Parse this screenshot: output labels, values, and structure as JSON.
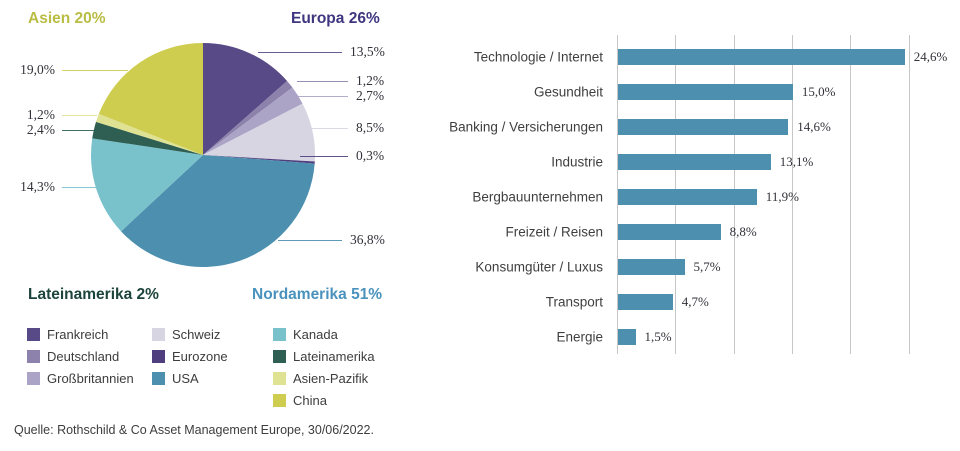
{
  "background": "#ffffff",
  "source_note": "Quelle: Rothschild & Co Asset Management Europe, 30/06/2022.",
  "region_titles": [
    {
      "id": "asien",
      "label": "Asien 20%",
      "color": "#b9bd44"
    },
    {
      "id": "europa",
      "label": "Europa 26%",
      "color": "#3f3680"
    },
    {
      "id": "lateinamerika",
      "label": "Lateinamerika 2%",
      "color": "#1d443c"
    },
    {
      "id": "nordamerika",
      "label": "Nordamerika 51%",
      "color": "#4a92bd"
    }
  ],
  "legend": {
    "columns": [
      [
        {
          "label": "Frankreich",
          "color": "#574a86"
        },
        {
          "label": "Deutschland",
          "color": "#8c82ab"
        },
        {
          "label": "Großbritannien",
          "color": "#aba4c6"
        }
      ],
      [
        {
          "label": "Schweiz",
          "color": "#d8d5e3"
        },
        {
          "label": "Eurozone",
          "color": "#503f7e"
        },
        {
          "label": "USA",
          "color": "#4d8fae"
        }
      ],
      [
        {
          "label": "Kanada",
          "color": "#79c2cc"
        },
        {
          "label": "Lateinamerika",
          "color": "#2e5f52"
        },
        {
          "label": "Asien-Pazifik",
          "color": "#dfe293"
        },
        {
          "label": "China",
          "color": "#cfcd4f"
        }
      ]
    ]
  },
  "chart_data": [
    {
      "type": "pie",
      "start_angle_deg": 0,
      "direction": "clockwise",
      "slices": [
        {
          "name": "Frankreich",
          "value": 13.5,
          "label": "13,5%",
          "color": "#574a86",
          "side": "right"
        },
        {
          "name": "Deutschland",
          "value": 1.2,
          "label": "1,2%",
          "color": "#8c82ab",
          "side": "right"
        },
        {
          "name": "Großbritannien",
          "value": 2.7,
          "label": "2,7%",
          "color": "#aba4c6",
          "side": "right"
        },
        {
          "name": "Schweiz",
          "value": 8.5,
          "label": "8,5%",
          "color": "#d8d5e3",
          "side": "right"
        },
        {
          "name": "Eurozone",
          "value": 0.3,
          "label": "0,3%",
          "color": "#503f7e",
          "side": "right"
        },
        {
          "name": "USA",
          "value": 36.8,
          "label": "36,8%",
          "color": "#4d8fae",
          "side": "right"
        },
        {
          "name": "Kanada",
          "value": 14.3,
          "label": "14,3%",
          "color": "#79c2cc",
          "side": "left"
        },
        {
          "name": "Lateinamerika",
          "value": 2.4,
          "label": "2,4%",
          "color": "#2e5f52",
          "side": "left"
        },
        {
          "name": "Asien-Pazifik",
          "value": 1.2,
          "label": "1,2%",
          "color": "#dfe293",
          "side": "left"
        },
        {
          "name": "China",
          "value": 19.0,
          "label": "19,0%",
          "color": "#cfcd4f",
          "side": "left"
        }
      ],
      "group_totals": [
        "Asien 20%",
        "Europa 26%",
        "Lateinamerika 2%",
        "Nordamerika 51%"
      ]
    },
    {
      "type": "bar",
      "orientation": "horizontal",
      "categories": [
        "Technologie / Internet",
        "Gesundheit",
        "Banking / Versicherungen",
        "Industrie",
        "Bergbauunternehmen",
        "Freizeit / Reisen",
        "Konsumgüter / Luxus",
        "Transport",
        "Energie"
      ],
      "values": [
        24.6,
        15.0,
        14.6,
        13.1,
        11.9,
        8.8,
        5.7,
        4.7,
        1.5
      ],
      "value_labels": [
        "24,6%",
        "15,0%",
        "14,6%",
        "13,1%",
        "11,9%",
        "8,8%",
        "5,7%",
        "4,7%",
        "1,5%"
      ],
      "bar_color": "#4d8fae",
      "xlim": [
        0,
        25
      ],
      "gridlines_at": [
        0,
        5,
        10,
        15,
        20,
        25
      ],
      "grid": true,
      "legend_position": "none",
      "axis_tick_labels_visible": false
    }
  ]
}
